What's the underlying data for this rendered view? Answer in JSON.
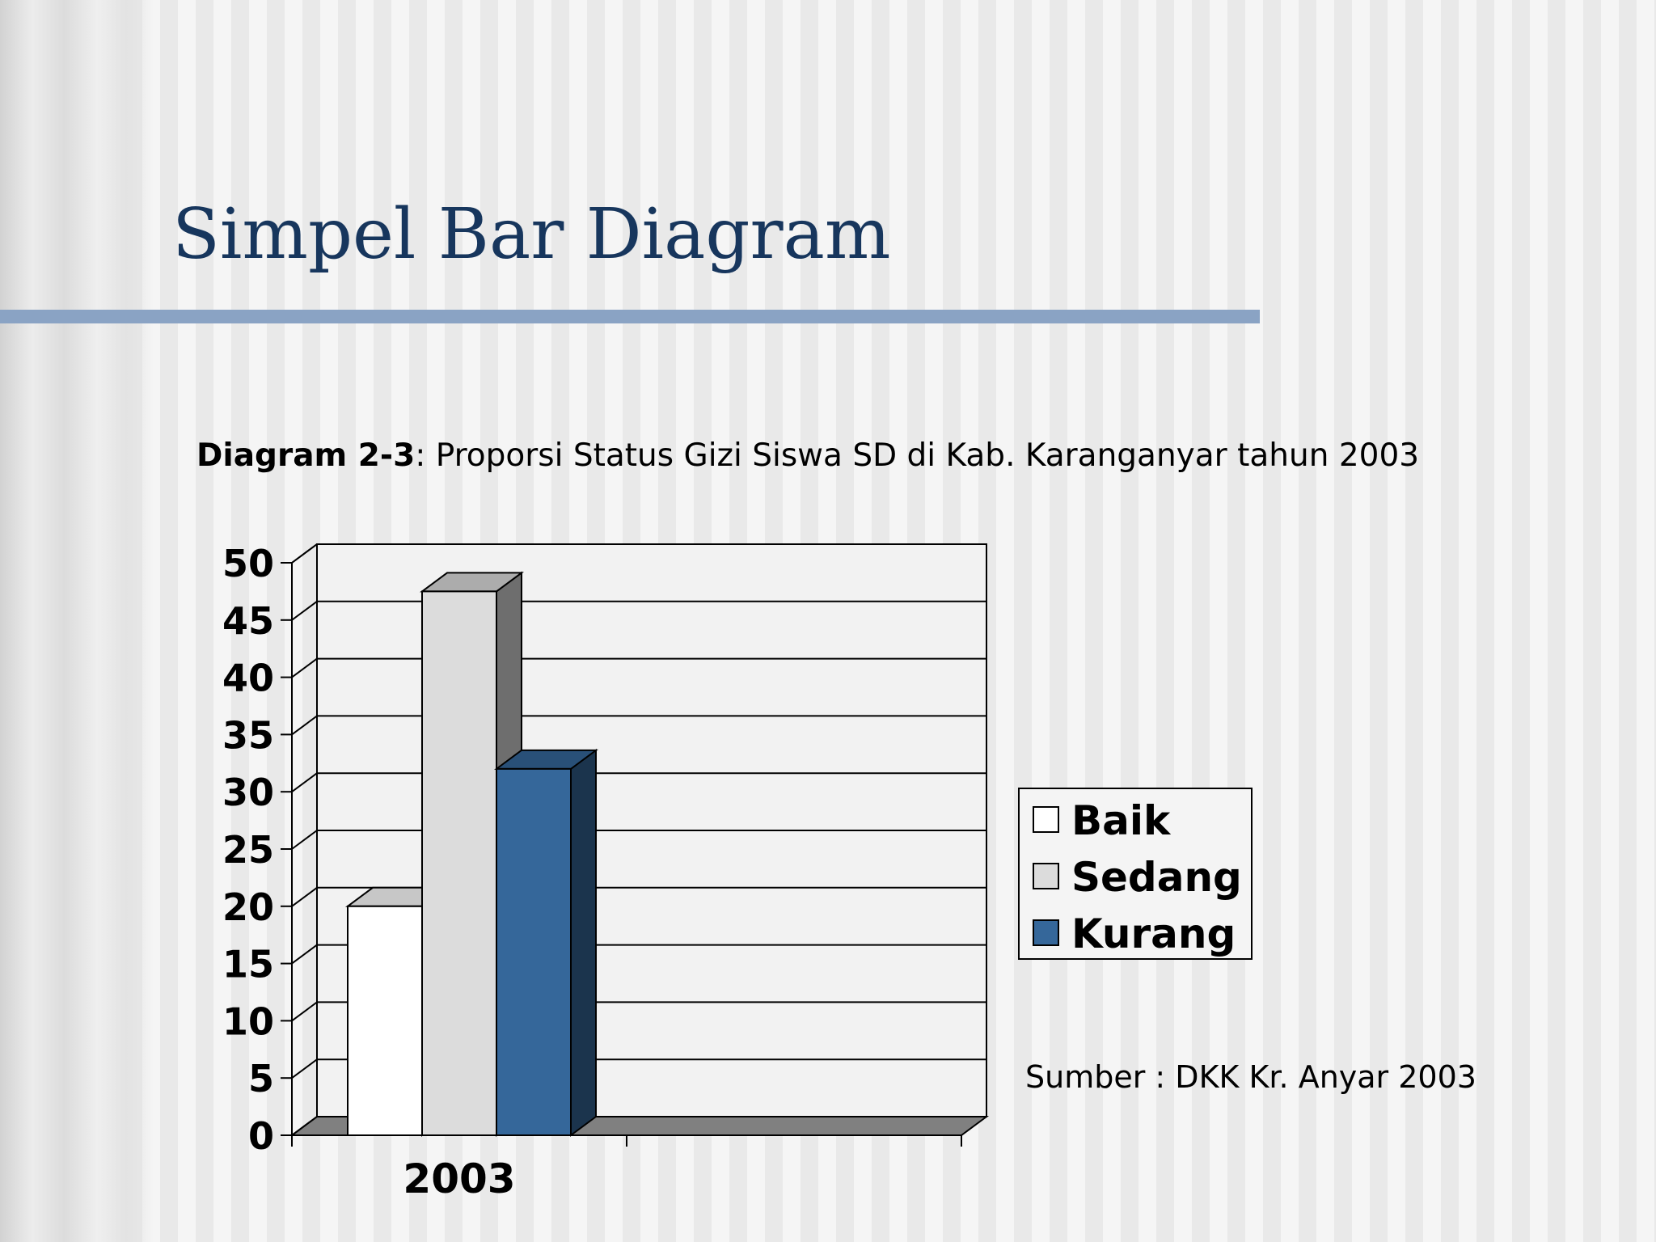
{
  "slide": {
    "title": "Simpel Bar Diagram",
    "caption_label": "Diagram 2-3",
    "caption_text": ": Proporsi Status Gizi Siswa SD di Kab. Karanganyar tahun 2003",
    "source": "Sumber : DKK Kr. Anyar 2003"
  },
  "colors": {
    "title": "#17365d",
    "rule": "#8aa3c4",
    "baik": "#ffffff",
    "sedang": "#dcdcdc",
    "kurang": "#35679a"
  },
  "chart_data": {
    "type": "bar",
    "style": "3d-clustered-column",
    "categories": [
      "2003"
    ],
    "series": [
      {
        "name": "Baik",
        "values": [
          20
        ],
        "color": "#ffffff"
      },
      {
        "name": "Sedang",
        "values": [
          47.5
        ],
        "color": "#dcdcdc"
      },
      {
        "name": "Kurang",
        "values": [
          32
        ],
        "color": "#35679a"
      }
    ],
    "ylim": [
      0,
      50
    ],
    "yticks": [
      "0",
      "5",
      "10",
      "15",
      "20",
      "25",
      "30",
      "35",
      "40",
      "45",
      "50"
    ],
    "grid": true,
    "legend_position": "right"
  }
}
